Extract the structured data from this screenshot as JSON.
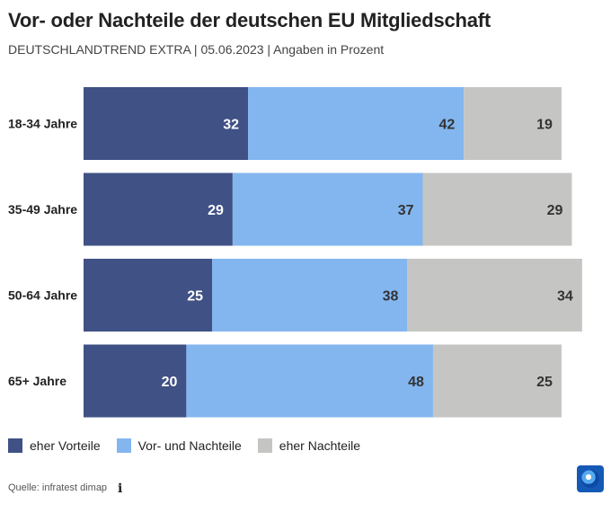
{
  "title": "Vor- oder Nachteile der deutschen EU Mitgliedschaft",
  "subtitle": "DEUTSCHLANDTREND EXTRA | 05.06.2023 | Angaben in Prozent",
  "source": "Quelle: infratest dimap",
  "icons": {
    "info": "info-icon",
    "logo": "tagesschau-logo-icon"
  },
  "chart_data": {
    "type": "bar",
    "orientation": "horizontal",
    "stacked": true,
    "categories": [
      "18-34 Jahre",
      "35-49 Jahre",
      "50-64 Jahre",
      "65+ Jahre"
    ],
    "series": [
      {
        "name": "eher Vorteile",
        "color": "#3f5185",
        "label_color": "#ffffff",
        "values": [
          32,
          29,
          25,
          20
        ]
      },
      {
        "name": "Vor- und Nachteile",
        "color": "#83b6ef",
        "label_color": "#333333",
        "values": [
          42,
          37,
          38,
          48
        ]
      },
      {
        "name": "eher Nachteile",
        "color": "#c5c5c3",
        "label_color": "#333333",
        "values": [
          19,
          29,
          34,
          25
        ]
      }
    ],
    "xlim": [
      0,
      100
    ],
    "legend_position": "bottom-left",
    "grid": false
  }
}
